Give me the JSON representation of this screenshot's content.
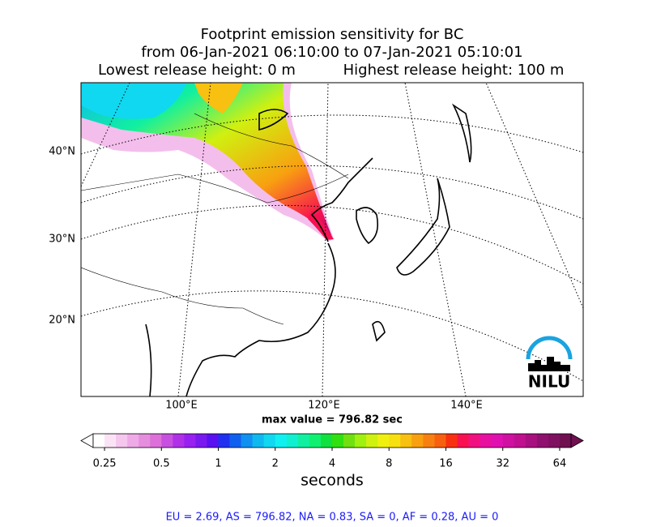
{
  "title": {
    "line1": "Footprint emission sensitivity for BC",
    "line2": "from 06-Jan-2021 06:10:00 to 07-Jan-2021 05:10:01",
    "lowest": "Lowest release height: 0 m",
    "highest": "Highest release height: 100 m"
  },
  "map": {
    "lat_labels": [
      "40°N",
      "30°N",
      "20°N"
    ],
    "lon_labels": [
      "100°E",
      "120°E",
      "140°E"
    ],
    "max_value": "max value = 796.82 sec",
    "logo": "NILU"
  },
  "colorbar": {
    "ticks": [
      "0.25",
      "0.5",
      "1",
      "2",
      "4",
      "8",
      "16",
      "32",
      "64"
    ],
    "label": "seconds",
    "colors": [
      "#ffffff",
      "#fbe3f6",
      "#f5c6ee",
      "#eeaae6",
      "#e68ede",
      "#dc70d8",
      "#c850e0",
      "#b030e8",
      "#9820f0",
      "#7a18f0",
      "#5a10f0",
      "#2030f0",
      "#1060f0",
      "#1090f0",
      "#10b8f0",
      "#10d8f0",
      "#10f0f0",
      "#10f0d0",
      "#10f0a0",
      "#10f070",
      "#10e040",
      "#30e010",
      "#70e010",
      "#a0f010",
      "#d0f010",
      "#f0f010",
      "#f8e010",
      "#f8c010",
      "#f8a010",
      "#f88010",
      "#f86010",
      "#f83010",
      "#f81050",
      "#f01080",
      "#e810a0",
      "#e010b0",
      "#d010a0",
      "#c01090",
      "#a81080",
      "#901070",
      "#801060",
      "#701050"
    ]
  },
  "footer": "EU = 2.69,  AS = 796.82,  NA = 0.83,  SA = 0,  AF = 0.28,  AU = 0"
}
